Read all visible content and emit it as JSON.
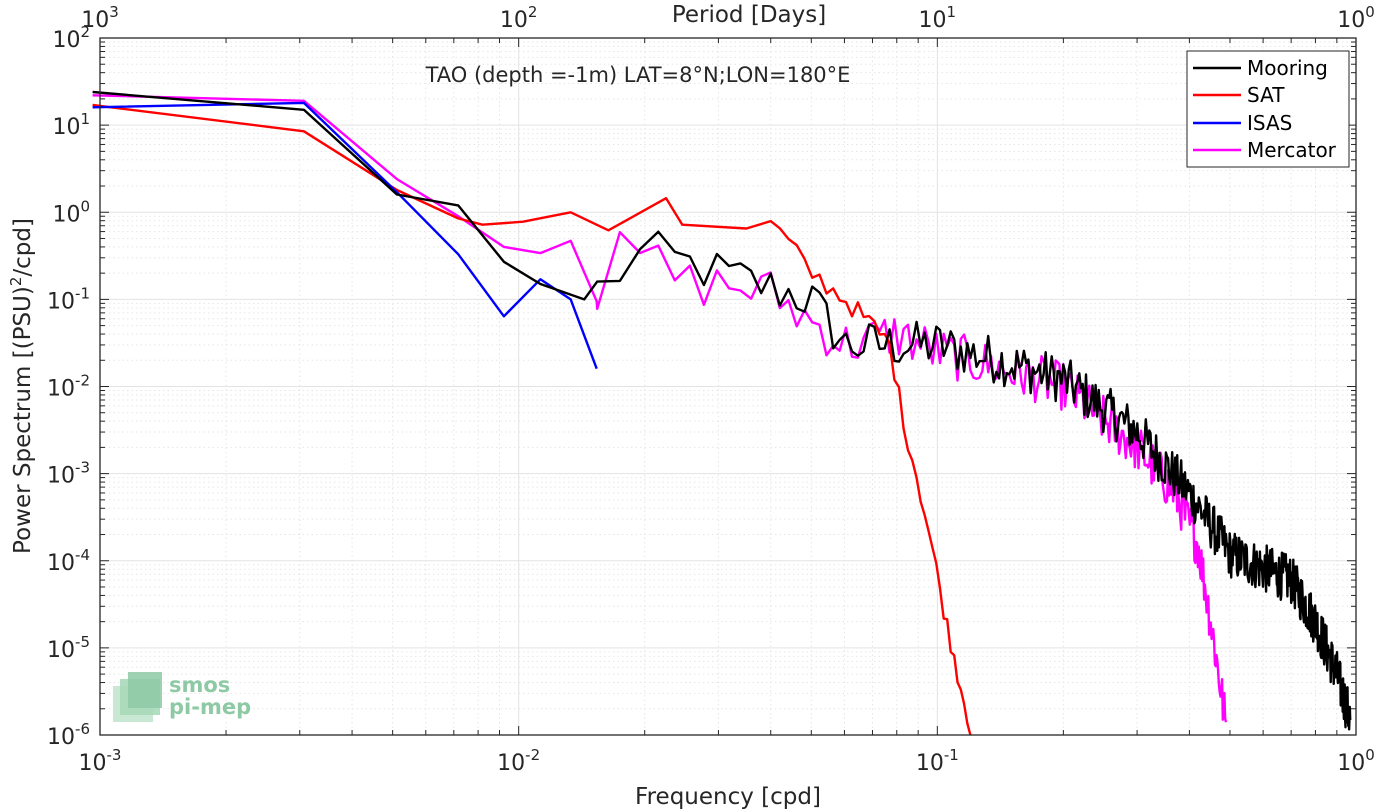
{
  "chart_data": {
    "type": "line",
    "title": "TAO (depth =-1m) LAT=8°N;LON=180°E",
    "xlabel": "Frequency [cpd]",
    "ylabel": "Power Spectrum [(PSU)",
    "ylabel_sup": "2",
    "ylabel_tail": "/cpd]",
    "top_xlabel": "Period [Days]",
    "x_scale": "log",
    "y_scale": "log",
    "xlim": [
      0.001,
      1
    ],
    "ylim": [
      1e-06,
      100
    ],
    "grid": true,
    "minor_grid": true,
    "legend_position": "top-right",
    "x_ticks": [
      {
        "base": "10",
        "exp": "-3",
        "value": 0.001
      },
      {
        "base": "10",
        "exp": "-2",
        "value": 0.01
      },
      {
        "base": "10",
        "exp": "-1",
        "value": 0.1
      },
      {
        "base": "10",
        "exp": "0",
        "value": 1
      }
    ],
    "top_ticks": [
      {
        "base": "10",
        "exp": "3",
        "value": 0.001
      },
      {
        "base": "10",
        "exp": "2",
        "value": 0.01
      },
      {
        "base": "10",
        "exp": "1",
        "value": 0.1
      },
      {
        "base": "10",
        "exp": "0",
        "value": 1
      }
    ],
    "y_ticks": [
      {
        "base": "10",
        "exp": "2",
        "value": 100
      },
      {
        "base": "10",
        "exp": "1",
        "value": 10
      },
      {
        "base": "10",
        "exp": "0",
        "value": 1
      },
      {
        "base": "10",
        "exp": "-1",
        "value": 0.1
      },
      {
        "base": "10",
        "exp": "-2",
        "value": 0.01
      },
      {
        "base": "10",
        "exp": "-3",
        "value": 0.001
      },
      {
        "base": "10",
        "exp": "-4",
        "value": 0.0001
      },
      {
        "base": "10",
        "exp": "-5",
        "value": 1e-05
      },
      {
        "base": "10",
        "exp": "-6",
        "value": 1e-06
      }
    ],
    "series": [
      {
        "name": "Mooring",
        "color": "#000000"
      },
      {
        "name": "SAT",
        "color": "#ff0000"
      },
      {
        "name": "ISAS",
        "color": "#0000ff"
      },
      {
        "name": "Mercator",
        "color": "#ff00ff"
      }
    ]
  },
  "logo": {
    "line1": "smos",
    "line2": "pi-mep"
  }
}
